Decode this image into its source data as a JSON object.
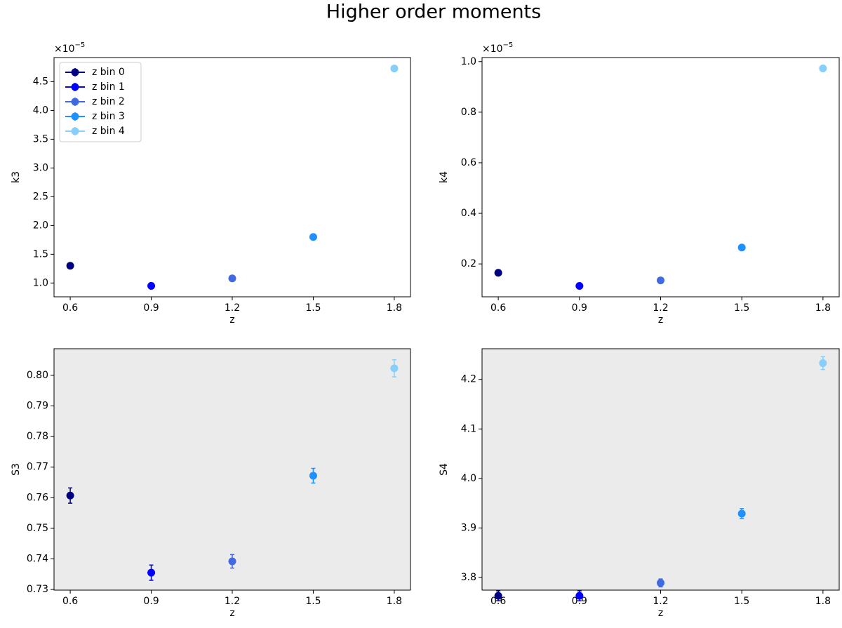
{
  "title": "Higher order moments",
  "chart_data": [
    {
      "type": "scatter",
      "ylabel": "k3",
      "xlabel": "z",
      "offset_label": {
        "base": "×10",
        "exponent": "−5"
      },
      "background": "#ffffff",
      "legend": "upper left",
      "xlim": [
        0.54,
        1.86
      ],
      "xticks": [
        0.6,
        0.9,
        1.2,
        1.5,
        1.8
      ],
      "ylim": [
        0.76,
        4.92
      ],
      "yticks": [
        {
          "value": 1,
          "label": "1.0"
        },
        1.5,
        {
          "value": 2,
          "label": "2.0"
        },
        2.5,
        {
          "value": 3,
          "label": "3.0"
        },
        3.5,
        {
          "value": 4,
          "label": "4.0"
        },
        4.5
      ],
      "series": [
        {
          "name": "z bin 0",
          "color": "#000080",
          "x": [
            0.6
          ],
          "values": [
            1.3
          ]
        },
        {
          "name": "z bin 1",
          "color": "#0000ff",
          "x": [
            0.9
          ],
          "values": [
            0.95
          ]
        },
        {
          "name": "z bin 2",
          "color": "#4169e1",
          "x": [
            1.2
          ],
          "values": [
            1.08
          ]
        },
        {
          "name": "z bin 3",
          "color": "#1e90ff",
          "x": [
            1.5
          ],
          "values": [
            1.8
          ]
        },
        {
          "name": "z bin 4",
          "color": "#87cefa",
          "x": [
            1.8
          ],
          "values": [
            4.73
          ]
        }
      ]
    },
    {
      "type": "scatter",
      "ylabel": "k4",
      "xlabel": "z",
      "offset_label": {
        "base": "×10",
        "exponent": "−5"
      },
      "background": "#ffffff",
      "xlim": [
        0.54,
        1.86
      ],
      "xticks": [
        0.6,
        0.9,
        1.2,
        1.5,
        1.8
      ],
      "ylim": [
        0.07,
        1.016
      ],
      "yticks": [
        0.2,
        0.4,
        0.6,
        0.8,
        {
          "value": 1,
          "label": "1.0"
        }
      ],
      "series": [
        {
          "color": "#000080",
          "x": [
            0.6
          ],
          "values": [
            0.165
          ]
        },
        {
          "color": "#0000ff",
          "x": [
            0.9
          ],
          "values": [
            0.113
          ]
        },
        {
          "color": "#4169e1",
          "x": [
            1.2
          ],
          "values": [
            0.135
          ]
        },
        {
          "color": "#1e90ff",
          "x": [
            1.5
          ],
          "values": [
            0.265
          ]
        },
        {
          "color": "#87cefa",
          "x": [
            1.8
          ],
          "values": [
            0.973
          ]
        }
      ]
    },
    {
      "type": "scatter",
      "ylabel": "S3",
      "xlabel": "z",
      "background": "#ebebeb",
      "xlim": [
        0.54,
        1.86
      ],
      "xticks": [
        0.6,
        0.9,
        1.2,
        1.5,
        1.8
      ],
      "ylim": [
        0.7298,
        0.8087
      ],
      "yticks": [
        0.73,
        0.74,
        0.75,
        0.76,
        0.77,
        0.78,
        0.79,
        {
          "value": 0.8,
          "label": "0.80"
        }
      ],
      "series": [
        {
          "color": "#000080",
          "x": [
            0.6
          ],
          "values": [
            0.7607
          ],
          "errors": [
            0.0025
          ]
        },
        {
          "color": "#0000ff",
          "x": [
            0.9
          ],
          "values": [
            0.7355
          ],
          "errors": [
            0.0025
          ]
        },
        {
          "color": "#4169e1",
          "x": [
            1.2
          ],
          "values": [
            0.7392
          ],
          "errors": [
            0.0022
          ]
        },
        {
          "color": "#1e90ff",
          "x": [
            1.5
          ],
          "values": [
            0.7672
          ],
          "errors": [
            0.0024
          ]
        },
        {
          "color": "#87cefa",
          "x": [
            1.8
          ],
          "values": [
            0.8023
          ],
          "errors": [
            0.0028
          ]
        }
      ]
    },
    {
      "type": "scatter",
      "ylabel": "S4",
      "xlabel": "z",
      "background": "#ebebeb",
      "xlim": [
        0.54,
        1.86
      ],
      "xticks": [
        0.6,
        0.9,
        1.2,
        1.5,
        1.8
      ],
      "ylim": [
        3.7745,
        4.262
      ],
      "yticks": [
        3.8,
        3.9,
        {
          "value": 4,
          "label": "4.0"
        },
        4.1,
        4.2
      ],
      "series": [
        {
          "color": "#000080",
          "x": [
            0.6
          ],
          "values": [
            3.763
          ],
          "errors": [
            0.01
          ]
        },
        {
          "color": "#0000ff",
          "x": [
            0.9
          ],
          "values": [
            3.763
          ],
          "errors": [
            0.01
          ]
        },
        {
          "color": "#4169e1",
          "x": [
            1.2
          ],
          "values": [
            3.789
          ],
          "errors": [
            0.008
          ]
        },
        {
          "color": "#1e90ff",
          "x": [
            1.5
          ],
          "values": [
            3.929
          ],
          "errors": [
            0.01
          ]
        },
        {
          "color": "#87cefa",
          "x": [
            1.8
          ],
          "values": [
            4.233
          ],
          "errors": [
            0.013
          ]
        }
      ]
    }
  ]
}
